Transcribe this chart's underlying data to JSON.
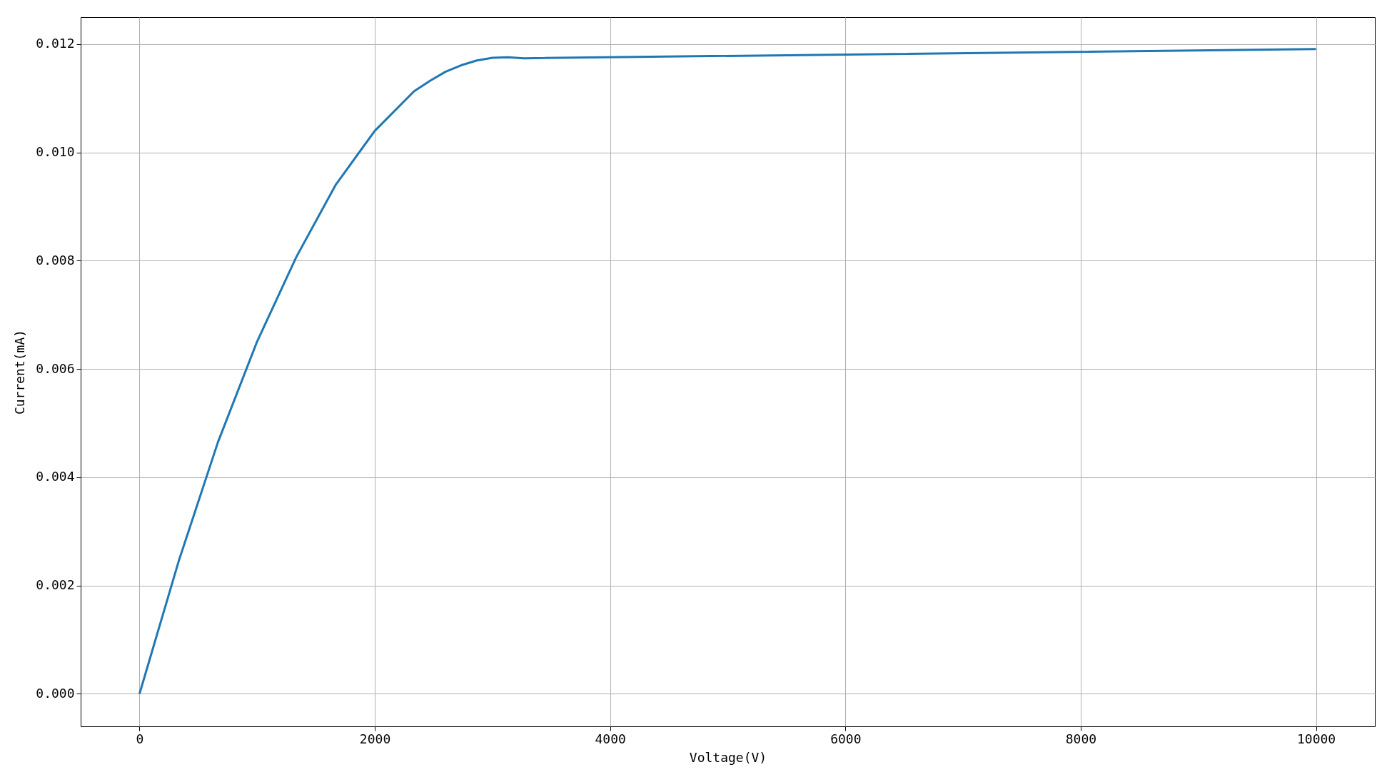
{
  "chart_data": {
    "type": "line",
    "xlabel": "Voltage(V)",
    "ylabel": "Current(mA)",
    "x": [
      0,
      333,
      667,
      1000,
      1333,
      1667,
      2000,
      2333,
      2467,
      2600,
      2733,
      2867,
      3000,
      3133,
      3267,
      10000
    ],
    "series": [
      {
        "color": "#1f77b4",
        "values": [
          0,
          0.00245,
          0.00465,
          0.00651,
          0.00807,
          0.0094,
          0.0104,
          0.01113,
          0.01132,
          0.01149,
          0.01161,
          0.0117,
          0.01175,
          0.01176,
          0.01174,
          0.01191
        ]
      }
    ],
    "xlim": [
      -500,
      10500
    ],
    "ylim": [
      -0.0006,
      0.0125
    ],
    "xticks": [
      0,
      2000,
      4000,
      6000,
      8000,
      10000
    ],
    "yticks": [
      {
        "value": 0,
        "label": "0.000"
      },
      {
        "value": 0.002,
        "label": "0.002"
      },
      {
        "value": 0.004,
        "label": "0.004"
      },
      {
        "value": 0.006,
        "label": "0.006"
      },
      {
        "value": 0.008,
        "label": "0.008"
      },
      {
        "value": 0.01,
        "label": "0.010"
      },
      {
        "value": 0.012,
        "label": "0.012"
      }
    ],
    "grid": true,
    "marker": "none",
    "line_style": "solid"
  }
}
